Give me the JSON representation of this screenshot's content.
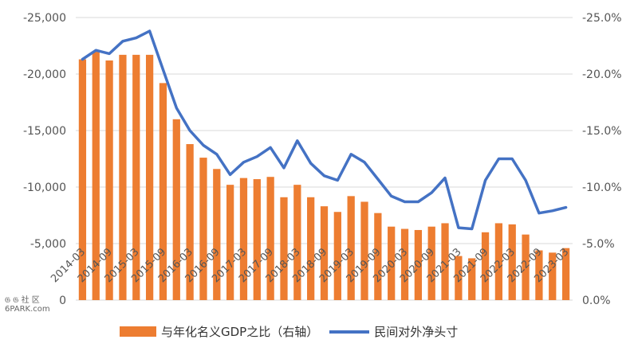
{
  "chart_data": {
    "type": "bar",
    "categories": [
      "2014-03",
      "2014-06",
      "2014-09",
      "2014-12",
      "2015-03",
      "2015-06",
      "2015-09",
      "2015-12",
      "2016-03",
      "2016-06",
      "2016-09",
      "2016-12",
      "2017-03",
      "2017-06",
      "2017-09",
      "2017-12",
      "2018-03",
      "2018-06",
      "2018-09",
      "2018-12",
      "2019-03",
      "2019-06",
      "2019-09",
      "2019-12",
      "2020-03",
      "2020-06",
      "2020-09",
      "2020-12",
      "2021-03",
      "2021-06",
      "2021-09",
      "2021-12",
      "2022-03",
      "2022-06",
      "2022-09",
      "2022-12",
      "2023-03"
    ],
    "x_tick_labels": [
      "2014-03",
      "2014-09",
      "2015-03",
      "2015-09",
      "2016-03",
      "2016-09",
      "2017-03",
      "2017-09",
      "2018-03",
      "2018-09",
      "2019-03",
      "2019-09",
      "2020-03",
      "2020-09",
      "2021-03",
      "2021-09",
      "2022-03",
      "2022-09",
      "2023-03"
    ],
    "series": [
      {
        "name": "与年化名义GDP之比（右轴）",
        "kind": "bar",
        "axis": "right",
        "color": "#ed7d31",
        "values": [
          -21.3,
          -22.0,
          -21.2,
          -21.7,
          -21.7,
          -21.7,
          -19.2,
          -16.0,
          -13.8,
          -12.6,
          -11.6,
          -10.2,
          -10.8,
          -10.7,
          -10.9,
          -9.1,
          -10.2,
          -9.1,
          -8.3,
          -7.8,
          -9.2,
          -8.7,
          -7.7,
          -6.5,
          -6.3,
          -6.2,
          -6.5,
          -6.8,
          -3.9,
          -3.7,
          -6.0,
          -6.8,
          -6.7,
          -5.8,
          -4.4,
          -4.2,
          -4.6
        ]
      },
      {
        "name": "民间对外净头寸",
        "kind": "line",
        "axis": "left",
        "color": "#4472c4",
        "values": [
          -21300,
          -22100,
          -21800,
          -22900,
          -23200,
          -23800,
          -20400,
          -17000,
          -15000,
          -13700,
          -12900,
          -11100,
          -12200,
          -12700,
          -13500,
          -11700,
          -14100,
          -12100,
          -11000,
          -10600,
          -12900,
          -12200,
          -10700,
          -9200,
          -8700,
          -8700,
          -9500,
          -10800,
          -6400,
          -6300,
          -10600,
          -12500,
          -12500,
          -10600,
          -7700,
          -7900,
          -8200
        ]
      }
    ],
    "left_axis": {
      "ylim": [
        0,
        -25000
      ],
      "ticks": [
        -25000,
        -20000,
        -15000,
        -10000,
        -5000,
        0
      ],
      "tick_labels": [
        "-25,000",
        "-20,000",
        "-15,000",
        "-10,000",
        "-5,000",
        "0"
      ]
    },
    "right_axis": {
      "ylim": [
        0,
        -25
      ],
      "ticks": [
        -25,
        -20,
        -15,
        -10,
        -5,
        0
      ],
      "tick_labels": [
        "-25.0%",
        "-20.0%",
        "-15.0%",
        "-10.0%",
        "-5.0%",
        "0.0%"
      ]
    },
    "legend": {
      "placement": "bottom"
    },
    "grid": true
  },
  "legend_labels": {
    "bar": "与年化名义GDP之比（右轴）",
    "line": "民间对外净头寸"
  },
  "watermark": {
    "line1": "𝔊 𝔊 社 区",
    "line2": "6PARK.com"
  }
}
